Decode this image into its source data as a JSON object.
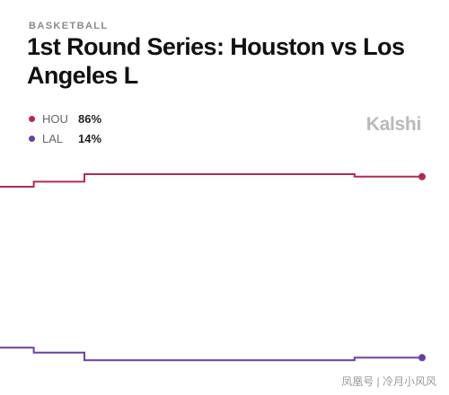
{
  "header": {
    "category": "BASKETBALL",
    "title": "1st Round Series: Houston vs Los Angeles L"
  },
  "brand": "Kalshi",
  "watermark": "凤凰号 | 冷月小风风",
  "legend": [
    {
      "name": "HOU",
      "value": "86%",
      "color": "#b7294f"
    },
    {
      "name": "LAL",
      "value": "14%",
      "color": "#6b3fa0"
    }
  ],
  "chart_data": {
    "type": "line",
    "title": "1st Round Series: Houston vs Los Angeles L",
    "xlabel": "",
    "ylabel": "",
    "ylim": [
      0,
      100
    ],
    "x": [
      0,
      1,
      2,
      3,
      4,
      5,
      6,
      7,
      8,
      9,
      10,
      11,
      12,
      13,
      14,
      15,
      16,
      17,
      18,
      19,
      20,
      21,
      22,
      23,
      24,
      25
    ],
    "series": [
      {
        "name": "HOU",
        "color": "#b7294f",
        "values": [
          82,
          82,
          84,
          84,
          84,
          87,
          87,
          87,
          87,
          87,
          87,
          87,
          87,
          87,
          87,
          87,
          87,
          87,
          87,
          87,
          87,
          86,
          86,
          86,
          86,
          86
        ]
      },
      {
        "name": "LAL",
        "color": "#6b3fa0",
        "values": [
          18,
          18,
          16,
          16,
          16,
          13,
          13,
          13,
          13,
          13,
          13,
          13,
          13,
          13,
          13,
          13,
          13,
          13,
          13,
          13,
          13,
          14,
          14,
          14,
          14,
          14
        ]
      }
    ],
    "grid": false,
    "legend_position": "top-left"
  }
}
